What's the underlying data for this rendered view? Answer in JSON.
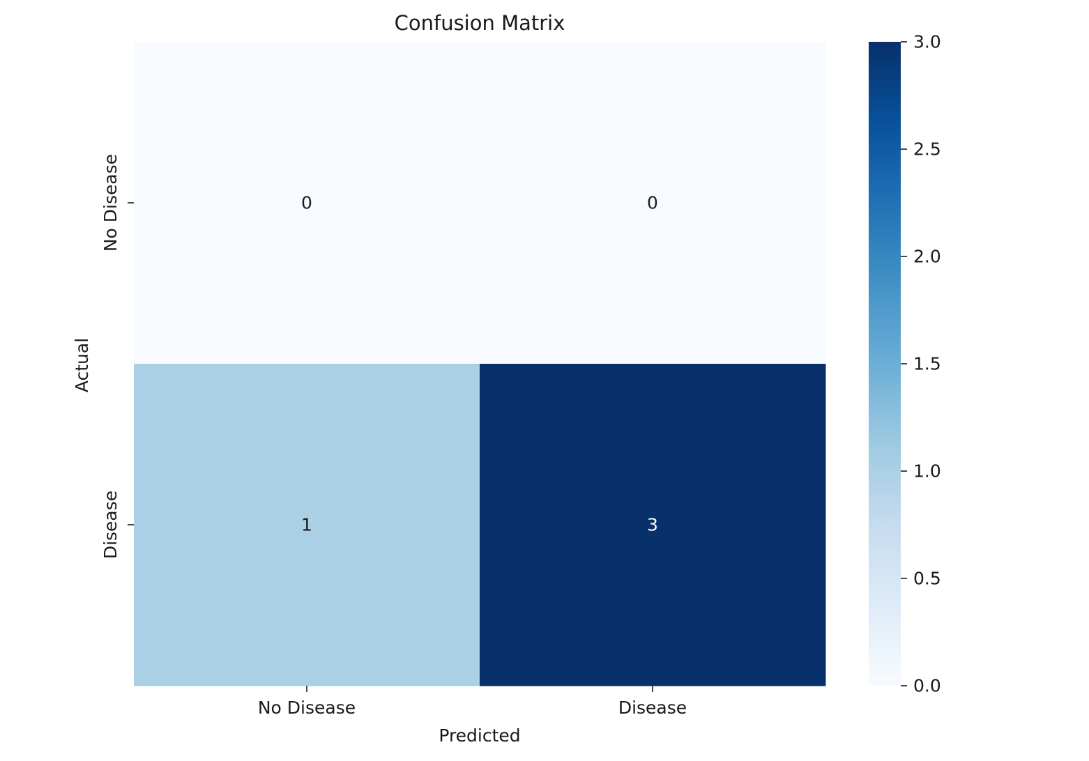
{
  "chart_data": {
    "type": "heatmap",
    "title": "Confusion Matrix",
    "xlabel": "Predicted",
    "ylabel": "Actual",
    "x_categories": [
      "No Disease",
      "Disease"
    ],
    "y_categories": [
      "No Disease",
      "Disease"
    ],
    "values": [
      [
        0,
        0
      ],
      [
        1,
        3
      ]
    ],
    "cell_labels": [
      [
        "0",
        "0"
      ],
      [
        "1",
        "3"
      ]
    ],
    "colorbar": {
      "range": [
        0.0,
        3.0
      ],
      "ticks": [
        0.0,
        0.5,
        1.0,
        1.5,
        2.0,
        2.5,
        3.0
      ],
      "tick_labels": [
        "0.0",
        "0.5",
        "1.0",
        "1.5",
        "2.0",
        "2.5",
        "3.0"
      ]
    },
    "colormap": "Blues",
    "colormap_stops": [
      "#f7fbff",
      "#deebf7",
      "#c6dbef",
      "#9ecae1",
      "#6baed6",
      "#4292c6",
      "#2171b5",
      "#08519c",
      "#08306b"
    ],
    "annotation_color_light": "#1a1a1a",
    "annotation_color_dark": "#ffffff",
    "grid": false,
    "legend": "none"
  }
}
